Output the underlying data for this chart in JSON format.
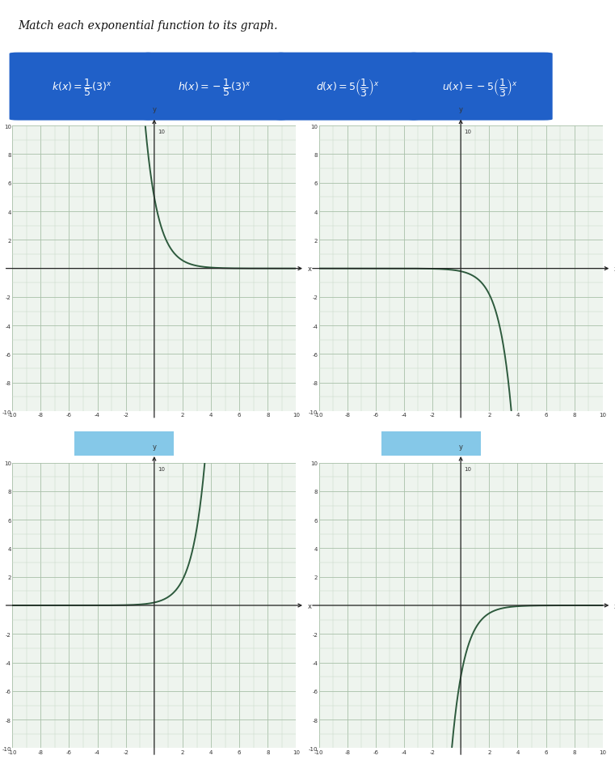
{
  "title": "Match each exponential function to its graph.",
  "btn_labels_tex": [
    "$k(x) = \\dfrac{1}{5}(3)^x$",
    "$h(x) = -\\dfrac{1}{5}(3)^x$",
    "$d(x) = 5\\left(\\dfrac{1}{3}\\right)^x$",
    "$u(x) = -5\\left(\\dfrac{1}{3}\\right)^x$"
  ],
  "button_color": "#2060c8",
  "text_color": "#ffffff",
  "graph_bg": "#eef4ee",
  "minor_grid_color": "#c8d8c8",
  "major_grid_color": "#a8c0a8",
  "axis_color": "#222222",
  "curve_color": "#2d5a3d",
  "xlim": [
    -10,
    10
  ],
  "ylim": [
    -10,
    10
  ],
  "xticks": [
    -10,
    -8,
    -6,
    -4,
    -2,
    2,
    4,
    6,
    8,
    10
  ],
  "yticks": [
    -10,
    -8,
    -6,
    -4,
    -2,
    2,
    4,
    6,
    8,
    10
  ],
  "page_bg": "#ffffff",
  "outer_bg": "#dde8dd",
  "answer_box_color": "#85c8e8",
  "graph_order": [
    "d",
    "h",
    "k",
    "u"
  ]
}
